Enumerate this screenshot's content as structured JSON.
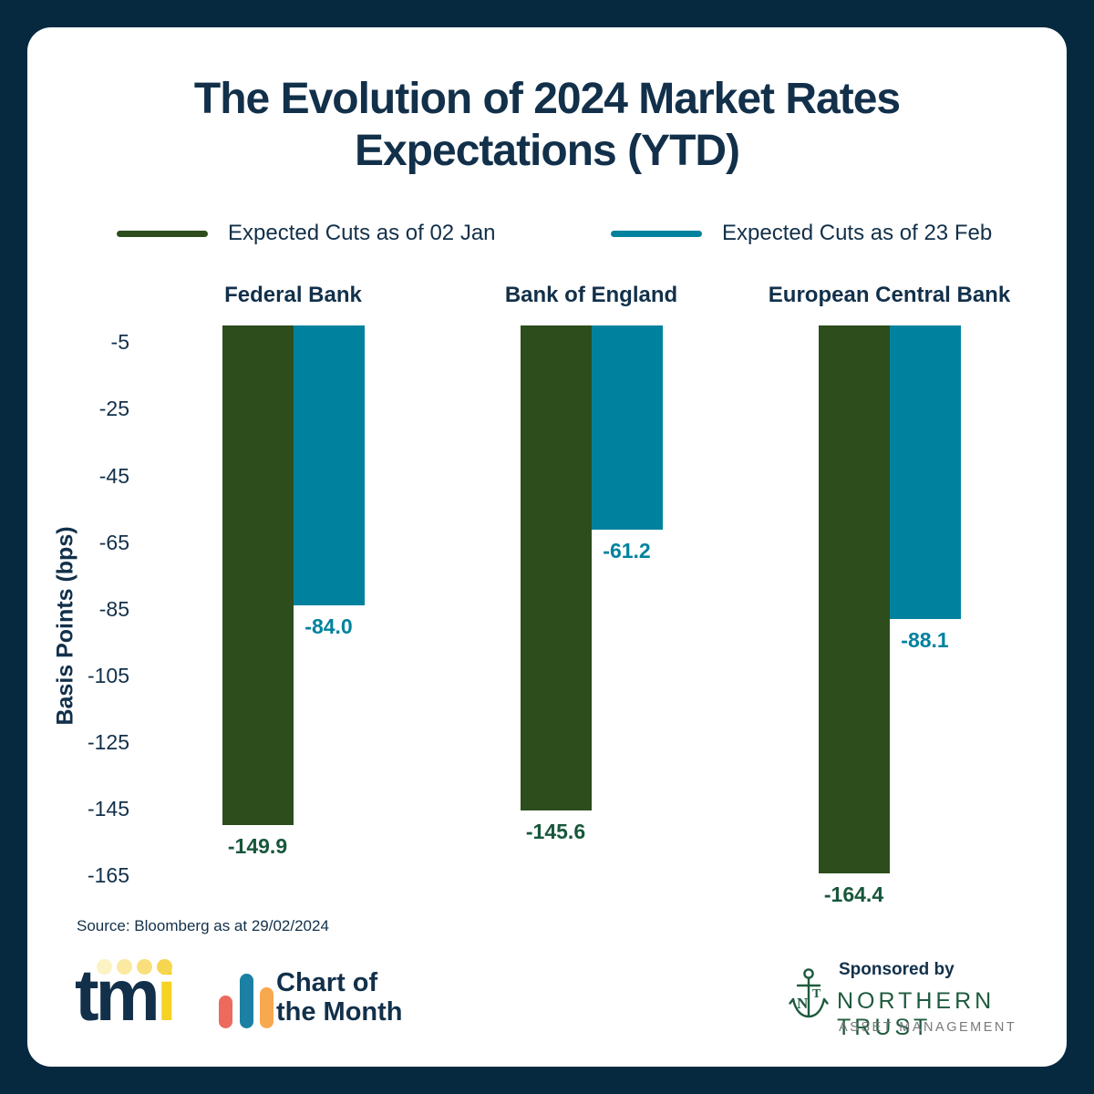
{
  "title": "The Evolution of 2024 Market Rates Expectations (YTD)",
  "legend": {
    "items": [
      {
        "label": "Expected Cuts as of 02 Jan",
        "color": "#2d4d1c"
      },
      {
        "label": "Expected Cuts as of 23 Feb",
        "color": "#00829e"
      }
    ]
  },
  "chart_data": {
    "type": "bar",
    "categories": [
      "Federal Bank",
      "Bank of England",
      "European Central Bank"
    ],
    "series": [
      {
        "name": "Expected Cuts as of 02 Jan",
        "color": "#2d4d1c",
        "label_color": "#17573b",
        "values": [
          -149.9,
          -145.6,
          -164.4
        ]
      },
      {
        "name": "Expected Cuts as of 23 Feb",
        "color": "#00829e",
        "label_color": "#00829e",
        "values": [
          -84.0,
          -61.2,
          -88.1
        ]
      }
    ],
    "title": "The Evolution of 2024 Market Rates Expectations (YTD)",
    "xlabel": "",
    "ylabel": "Basis Points (bps)",
    "yticks": [
      -5,
      -25,
      -45,
      -65,
      -85,
      -105,
      -125,
      -145,
      -165
    ],
    "ylim": [
      0,
      -170
    ],
    "grid": false,
    "legend_position": "top",
    "value_labels": [
      [
        "-149.9",
        "-145.6",
        "-164.4"
      ],
      [
        "-84.0",
        "-61.2",
        "-88.1"
      ]
    ]
  },
  "source": "Source: Bloomberg as at 29/02/2024",
  "footer": {
    "tmi_logo": {
      "tm": "tm",
      "i": "i",
      "dot_colors": [
        "#fdf2c3",
        "#fbe9a1",
        "#f9df7c",
        "#f6d64f"
      ]
    },
    "chart_of_the_month": {
      "line1": "Chart of",
      "line2": "the Month",
      "bar_colors": [
        "#ec6a5e",
        "#1b80a4",
        "#f8a84e"
      ]
    },
    "sponsor": {
      "prefix": "Sponsored by",
      "name": "NORTHERN TRUST",
      "subtitle": "ASSET MANAGEMENT",
      "color": "#1e5b3e"
    }
  },
  "colors": {
    "frame": "#062940",
    "card": "#ffffff",
    "navy_text": "#12304a",
    "green_bar": "#2d4d1c",
    "teal_bar": "#00829e",
    "green_value_label": "#17573b",
    "nt_green": "#1e5b3e",
    "gray_text": "#77797a"
  }
}
